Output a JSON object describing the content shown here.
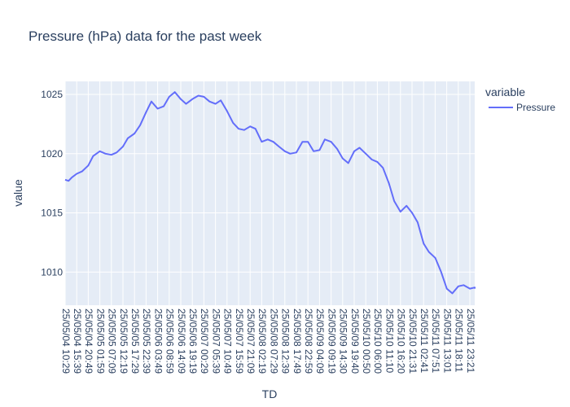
{
  "colors": {
    "plot_background": "#e5ecf6",
    "gridline": "#ffffff",
    "series_line": "#636efa",
    "text": "#2a3f5f"
  },
  "chart_data": {
    "type": "line",
    "title": "Pressure (hPa)  data for the past week",
    "xlabel": "TD",
    "ylabel": "value",
    "ylim": [
      1007.2,
      1026.1
    ],
    "grid": true,
    "legend_title": "variable",
    "legend_position": "top-right",
    "y_ticks": [
      1010,
      1015,
      1020,
      1025
    ],
    "x_tick_labels": [
      "25/05/04 10:29",
      "25/05/04 15:39",
      "25/05/04 20:49",
      "25/05/05 01:59",
      "25/05/05 07:09",
      "25/05/05 12:19",
      "25/05/05 17:29",
      "25/05/05 22:39",
      "25/05/06 03:49",
      "25/05/06 08:59",
      "25/05/06 14:09",
      "25/05/06 19:19",
      "25/05/07 00:29",
      "25/05/07 05:39",
      "25/05/07 10:49",
      "25/05/07 15:59",
      "25/05/07 21:09",
      "25/05/08 02:19",
      "25/05/08 07:29",
      "25/05/08 12:39",
      "25/05/08 17:49",
      "25/05/08 22:59",
      "25/05/09 04:09",
      "25/05/09 09:19",
      "25/05/09 14:30",
      "25/05/09 19:40",
      "25/05/10 00:50",
      "25/05/10 06:00",
      "25/05/10 11:10",
      "25/05/10 16:20",
      "25/05/10 21:31",
      "25/05/11 02:41",
      "25/05/11 07:51",
      "25/05/11 13:01",
      "25/05/11 18:11",
      "25/05/11 23:21"
    ],
    "series": [
      {
        "name": "Pressure",
        "x": [
          "25/05/04 10:29",
          "25/05/04 12:00",
          "25/05/04 13:30",
          "25/05/04 15:39",
          "25/05/04 18:00",
          "25/05/04 20:49",
          "25/05/04 23:00",
          "25/05/05 01:59",
          "25/05/05 04:30",
          "25/05/05 07:09",
          "25/05/05 09:30",
          "25/05/05 12:19",
          "25/05/05 14:30",
          "25/05/05 17:29",
          "25/05/05 20:00",
          "25/05/05 22:39",
          "25/05/06 01:00",
          "25/05/06 03:49",
          "25/05/06 06:30",
          "25/05/06 08:59",
          "25/05/06 11:30",
          "25/05/06 14:09",
          "25/05/06 16:30",
          "25/05/06 19:19",
          "25/05/06 22:00",
          "25/05/07 00:29",
          "25/05/07 03:00",
          "25/05/07 05:39",
          "25/05/07 08:00",
          "25/05/07 10:49",
          "25/05/07 13:30",
          "25/05/07 15:59",
          "25/05/07 18:30",
          "25/05/07 21:09",
          "25/05/07 23:30",
          "25/05/08 02:19",
          "25/05/08 05:00",
          "25/05/08 07:29",
          "25/05/08 10:00",
          "25/05/08 12:39",
          "25/05/08 15:00",
          "25/05/08 17:49",
          "25/05/08 20:30",
          "25/05/08 22:59",
          "25/05/09 01:30",
          "25/05/09 04:09",
          "25/05/09 06:30",
          "25/05/09 09:19",
          "25/05/09 12:00",
          "25/05/09 14:30",
          "25/05/09 17:00",
          "25/05/09 19:40",
          "25/05/09 22:00",
          "25/05/10 00:50",
          "25/05/10 03:30",
          "25/05/10 06:00",
          "25/05/10 08:30",
          "25/05/10 11:10",
          "25/05/10 13:30",
          "25/05/10 16:20",
          "25/05/10 19:00",
          "25/05/10 21:31",
          "25/05/11 00:00",
          "25/05/11 02:41",
          "25/05/11 05:00",
          "25/05/11 07:51",
          "25/05/11 10:30",
          "25/05/11 13:01",
          "25/05/11 15:30",
          "25/05/11 18:11",
          "25/05/11 20:30",
          "25/05/11 23:21",
          "25/05/12 01:30",
          "25/05/12 03:00"
        ],
        "values": [
          1017.8,
          1017.7,
          1018.0,
          1018.3,
          1018.5,
          1019.0,
          1019.8,
          1020.2,
          1020.0,
          1019.9,
          1020.1,
          1020.6,
          1021.3,
          1021.7,
          1022.4,
          1023.5,
          1024.4,
          1023.8,
          1024.0,
          1024.8,
          1025.2,
          1024.6,
          1024.2,
          1024.6,
          1024.9,
          1024.8,
          1024.4,
          1024.2,
          1024.5,
          1023.6,
          1022.6,
          1022.1,
          1022.0,
          1022.3,
          1022.1,
          1021.0,
          1021.2,
          1021.0,
          1020.6,
          1020.2,
          1020.0,
          1020.1,
          1021.0,
          1021.0,
          1020.2,
          1020.3,
          1021.2,
          1021.0,
          1020.4,
          1019.6,
          1019.2,
          1020.2,
          1020.5,
          1020.0,
          1019.5,
          1019.3,
          1018.8,
          1017.5,
          1016.0,
          1015.1,
          1015.6,
          1015.0,
          1014.2,
          1012.4,
          1011.7,
          1011.2,
          1010.0,
          1008.6,
          1008.2,
          1008.8,
          1008.9,
          1008.6,
          1008.7,
          1008.6
        ]
      }
    ]
  }
}
